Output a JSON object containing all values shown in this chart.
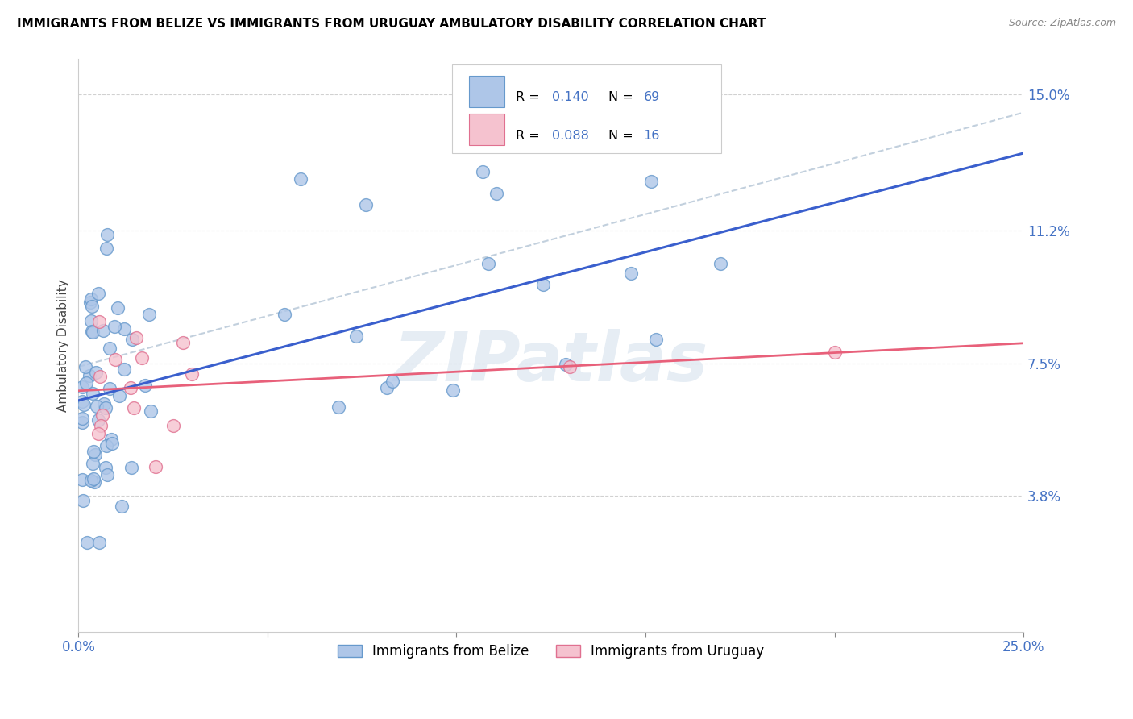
{
  "title": "IMMIGRANTS FROM BELIZE VS IMMIGRANTS FROM URUGUAY AMBULATORY DISABILITY CORRELATION CHART",
  "source": "Source: ZipAtlas.com",
  "ylabel": "Ambulatory Disability",
  "xlim": [
    0.0,
    0.25
  ],
  "ylim": [
    0.0,
    0.16
  ],
  "xticks": [
    0.0,
    0.05,
    0.1,
    0.15,
    0.2,
    0.25
  ],
  "xticklabels": [
    "0.0%",
    "",
    "",
    "",
    "",
    "25.0%"
  ],
  "ytick_positions": [
    0.038,
    0.075,
    0.112,
    0.15
  ],
  "ytick_labels": [
    "3.8%",
    "7.5%",
    "11.2%",
    "15.0%"
  ],
  "belize_color": "#aec6e8",
  "belize_edge": "#6699cc",
  "uruguay_color": "#f5c2cf",
  "uruguay_edge": "#e07090",
  "belize_line_color": "#3a5fcd",
  "uruguay_line_color": "#e8607a",
  "dash_line_color": "#b8c8d8",
  "R_belize": 0.14,
  "N_belize": 69,
  "R_uruguay": 0.088,
  "N_uruguay": 16,
  "watermark": "ZIPatlas",
  "legend_belize_label": "Immigrants from Belize",
  "legend_uruguay_label": "Immigrants from Uruguay",
  "belize_seed": 77,
  "uruguay_seed": 99
}
